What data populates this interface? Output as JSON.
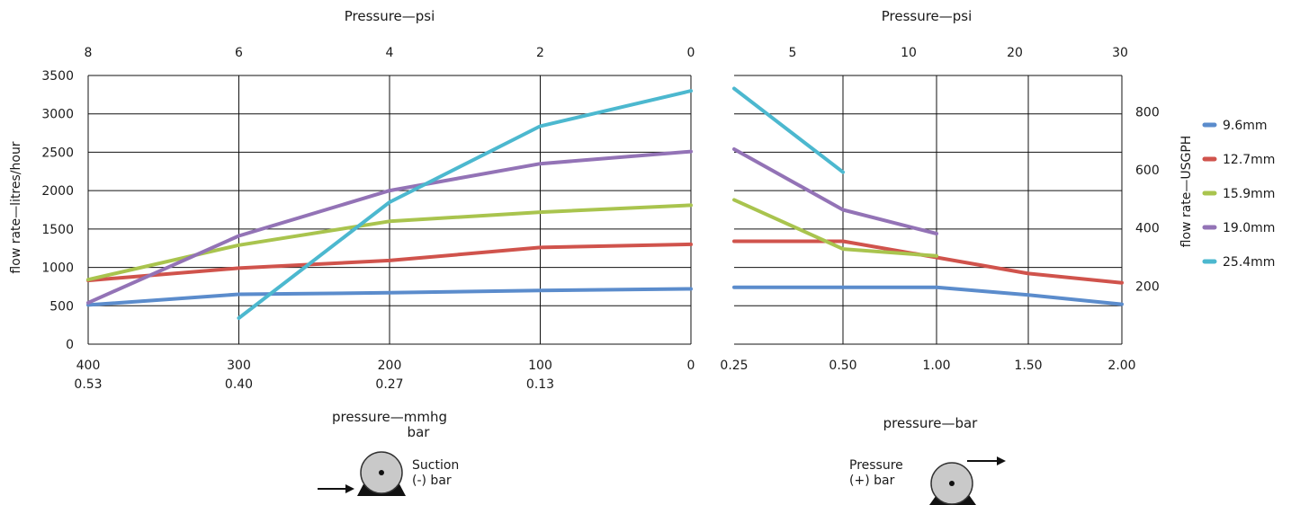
{
  "chart_data": [
    {
      "type": "line",
      "top_axis": {
        "title": "Pressure—psi",
        "ticks": [
          "8",
          "6",
          "4",
          "2",
          "0"
        ]
      },
      "y_axis": {
        "title": "flow rate—litres/hour",
        "ticks": [
          "0",
          "500",
          "1000",
          "1500",
          "2000",
          "2500",
          "3000",
          "3500"
        ],
        "ylim": [
          0,
          3500
        ]
      },
      "x_axis": {
        "title_line1": "pressure—mmhg",
        "title_line2": "bar",
        "ticks_mmhg": [
          "400",
          "300",
          "200",
          "100",
          "0"
        ],
        "ticks_bar": [
          "0.53",
          "0.40",
          "0.27",
          "0.13",
          ""
        ],
        "xlim": [
          400,
          0
        ]
      },
      "grid": true,
      "series": [
        {
          "name": "9.6mm",
          "x": [
            400,
            300,
            200,
            100,
            0
          ],
          "y": [
            510,
            650,
            670,
            700,
            720
          ]
        },
        {
          "name": "12.7mm",
          "x": [
            400,
            300,
            200,
            100,
            0
          ],
          "y": [
            830,
            990,
            1090,
            1260,
            1300
          ]
        },
        {
          "name": "15.9mm",
          "x": [
            400,
            300,
            200,
            100,
            0
          ],
          "y": [
            840,
            1290,
            1600,
            1720,
            1810
          ]
        },
        {
          "name": "19.0mm",
          "x": [
            400,
            300,
            200,
            100,
            0
          ],
          "y": [
            540,
            1410,
            2000,
            2350,
            2510
          ]
        },
        {
          "name": "25.4mm",
          "x": [
            300,
            200,
            100,
            0
          ],
          "y": [
            340,
            1850,
            2840,
            3300
          ]
        }
      ],
      "icon": {
        "name": "suction-pump-icon",
        "label_line1": "Suction",
        "label_line2": "(-) bar"
      }
    },
    {
      "type": "line",
      "top_axis": {
        "title": "Pressure—psi",
        "ticks": [
          "5",
          "10",
          "20",
          "30"
        ]
      },
      "y2_axis": {
        "title": "flow rate—USGPH",
        "ticks": [
          "200",
          "400",
          "600",
          "800"
        ]
      },
      "x_axis": {
        "title": "pressure—bar",
        "ticks": [
          "0.25",
          "0.50",
          "1.00",
          "1.50",
          "2.00"
        ]
      },
      "grid": true,
      "series": [
        {
          "name": "9.6mm",
          "x": [
            "0.25",
            "0.50",
            "1.00",
            "1.50",
            "2.00"
          ],
          "y": [
            740,
            740,
            740,
            640,
            520
          ]
        },
        {
          "name": "12.7mm",
          "x": [
            "0.25",
            "0.50",
            "1.00",
            "1.50",
            "2.00"
          ],
          "y": [
            1340,
            1340,
            1130,
            920,
            800
          ]
        },
        {
          "name": "15.9mm",
          "x": [
            "0.25",
            "0.50",
            "1.00"
          ],
          "y": [
            1880,
            1240,
            1150
          ]
        },
        {
          "name": "19.0mm",
          "x": [
            "0.25",
            "0.50",
            "1.00"
          ],
          "y": [
            2540,
            1750,
            1440
          ]
        },
        {
          "name": "25.4mm",
          "x": [
            "0.25",
            "0.50"
          ],
          "y": [
            3330,
            2240
          ]
        }
      ],
      "icon": {
        "name": "pressure-pump-icon",
        "label_line1": "Pressure",
        "label_line2": "(+) bar"
      }
    }
  ],
  "legend": {
    "placement": "right",
    "entries": [
      {
        "label": "9.6mm",
        "color": "#5b8ccc"
      },
      {
        "label": "12.7mm",
        "color": "#d0534c"
      },
      {
        "label": "15.9mm",
        "color": "#a9c44e"
      },
      {
        "label": "19.0mm",
        "color": "#9373b6"
      },
      {
        "label": "25.4mm",
        "color": "#4cb8cf"
      }
    ]
  }
}
